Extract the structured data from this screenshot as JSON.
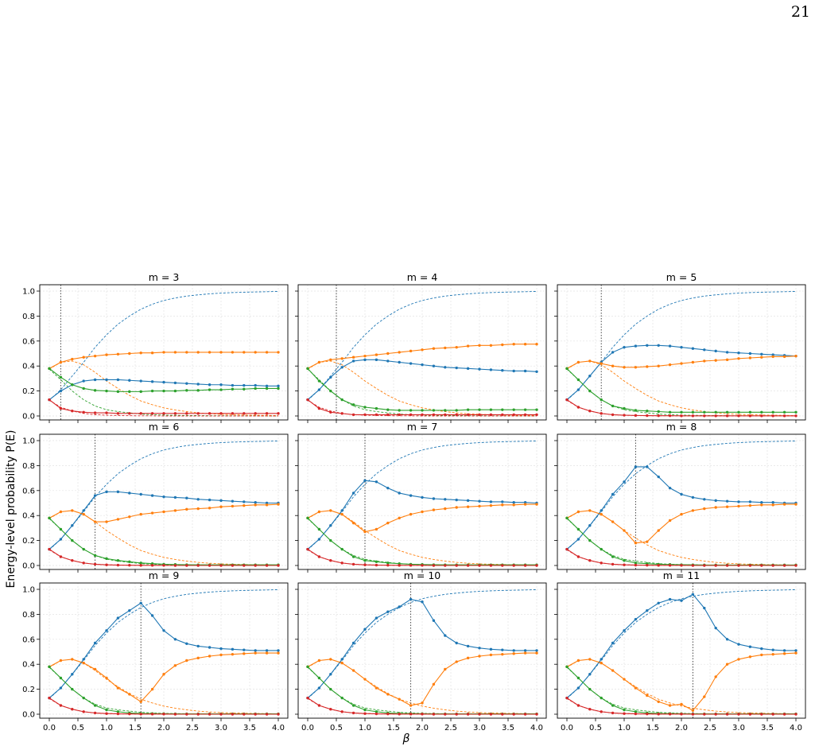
{
  "page_number": "21",
  "chart_data": {
    "type": "line",
    "layout": "3x3 grid",
    "xlabel": "β",
    "ylabel": "Energy-level probability P(E)",
    "xlim": [
      0.0,
      4.0
    ],
    "ylim": [
      0.0,
      1.0
    ],
    "xticks": [
      "0.0",
      "0.5",
      "1.0",
      "1.5",
      "2.0",
      "2.5",
      "3.0",
      "3.5",
      "4.0"
    ],
    "yticks": [
      "0.0",
      "0.2",
      "0.4",
      "0.6",
      "0.8",
      "1.0"
    ],
    "grid": true,
    "colors": {
      "blue": "#1f77b4",
      "orange": "#ff7f0e",
      "green": "#2ca02c",
      "red": "#d62728"
    },
    "exact_series": {
      "x": [
        0.0,
        0.2,
        0.4,
        0.6,
        0.8,
        1.0,
        1.2,
        1.4,
        1.6,
        1.8,
        2.0,
        2.2,
        2.4,
        2.6,
        2.8,
        3.0,
        3.2,
        3.4,
        3.6,
        3.8,
        4.0
      ],
      "blue": [
        0.125,
        0.21,
        0.32,
        0.43,
        0.55,
        0.65,
        0.735,
        0.8,
        0.855,
        0.895,
        0.925,
        0.945,
        0.96,
        0.97,
        0.978,
        0.984,
        0.988,
        0.991,
        0.993,
        0.995,
        0.997
      ],
      "orange": [
        0.375,
        0.43,
        0.44,
        0.41,
        0.35,
        0.28,
        0.22,
        0.165,
        0.12,
        0.09,
        0.065,
        0.048,
        0.035,
        0.025,
        0.018,
        0.013,
        0.01,
        0.008,
        0.006,
        0.005,
        0.003
      ],
      "green": [
        0.375,
        0.29,
        0.2,
        0.13,
        0.08,
        0.05,
        0.035,
        0.025,
        0.015,
        0.01,
        0.007,
        0.005,
        0.004,
        0.003,
        0.002,
        0.002,
        0.001,
        0.001,
        0.001,
        0.0,
        0.0
      ],
      "red": [
        0.125,
        0.07,
        0.04,
        0.02,
        0.01,
        0.006,
        0.004,
        0.002,
        0.001,
        0.001,
        0.0,
        0.0,
        0.0,
        0.0,
        0.0,
        0.0,
        0.0,
        0.0,
        0.0,
        0.0,
        0.0
      ]
    },
    "panels": [
      {
        "title": "m = 3",
        "vline": 0.2,
        "x": [
          0.0,
          0.2,
          0.4,
          0.6,
          0.8,
          1.0,
          1.2,
          1.4,
          1.6,
          1.8,
          2.0,
          2.2,
          2.4,
          2.6,
          2.8,
          3.0,
          3.2,
          3.4,
          3.6,
          3.8,
          4.0
        ],
        "blue": [
          0.13,
          0.2,
          0.25,
          0.28,
          0.29,
          0.29,
          0.29,
          0.285,
          0.28,
          0.275,
          0.27,
          0.265,
          0.26,
          0.255,
          0.25,
          0.25,
          0.245,
          0.245,
          0.245,
          0.24,
          0.24
        ],
        "orange": [
          0.38,
          0.43,
          0.455,
          0.47,
          0.48,
          0.49,
          0.495,
          0.5,
          0.505,
          0.505,
          0.51,
          0.51,
          0.51,
          0.51,
          0.51,
          0.51,
          0.51,
          0.51,
          0.51,
          0.51,
          0.51
        ],
        "green": [
          0.38,
          0.31,
          0.25,
          0.22,
          0.205,
          0.2,
          0.195,
          0.195,
          0.195,
          0.2,
          0.2,
          0.2,
          0.205,
          0.205,
          0.21,
          0.21,
          0.215,
          0.215,
          0.22,
          0.22,
          0.22
        ],
        "red": [
          0.13,
          0.06,
          0.04,
          0.03,
          0.025,
          0.025,
          0.02,
          0.02,
          0.02,
          0.02,
          0.02,
          0.02,
          0.02,
          0.02,
          0.02,
          0.02,
          0.02,
          0.02,
          0.02,
          0.02,
          0.02
        ]
      },
      {
        "title": "m = 4",
        "vline": 0.5,
        "x": [
          0.0,
          0.2,
          0.4,
          0.6,
          0.8,
          1.0,
          1.2,
          1.4,
          1.6,
          1.8,
          2.0,
          2.2,
          2.4,
          2.6,
          2.8,
          3.0,
          3.2,
          3.4,
          3.6,
          3.8,
          4.0
        ],
        "blue": [
          0.13,
          0.21,
          0.31,
          0.39,
          0.44,
          0.45,
          0.45,
          0.44,
          0.43,
          0.42,
          0.41,
          0.4,
          0.39,
          0.385,
          0.38,
          0.375,
          0.37,
          0.365,
          0.36,
          0.36,
          0.355
        ],
        "orange": [
          0.38,
          0.43,
          0.45,
          0.46,
          0.47,
          0.48,
          0.49,
          0.5,
          0.51,
          0.52,
          0.53,
          0.54,
          0.545,
          0.55,
          0.56,
          0.565,
          0.565,
          0.57,
          0.575,
          0.575,
          0.575
        ],
        "green": [
          0.38,
          0.28,
          0.2,
          0.13,
          0.09,
          0.07,
          0.06,
          0.05,
          0.045,
          0.045,
          0.045,
          0.045,
          0.045,
          0.045,
          0.05,
          0.05,
          0.05,
          0.05,
          0.05,
          0.05,
          0.05
        ],
        "red": [
          0.13,
          0.06,
          0.03,
          0.02,
          0.01,
          0.01,
          0.01,
          0.01,
          0.01,
          0.01,
          0.01,
          0.01,
          0.01,
          0.01,
          0.01,
          0.01,
          0.01,
          0.01,
          0.01,
          0.01,
          0.01
        ]
      },
      {
        "title": "m = 5",
        "vline": 0.6,
        "x": [
          0.0,
          0.2,
          0.4,
          0.6,
          0.8,
          1.0,
          1.2,
          1.4,
          1.6,
          1.8,
          2.0,
          2.2,
          2.4,
          2.6,
          2.8,
          3.0,
          3.2,
          3.4,
          3.6,
          3.8,
          4.0
        ],
        "blue": [
          0.13,
          0.21,
          0.32,
          0.43,
          0.51,
          0.55,
          0.56,
          0.565,
          0.565,
          0.56,
          0.55,
          0.54,
          0.53,
          0.52,
          0.51,
          0.505,
          0.5,
          0.495,
          0.49,
          0.485,
          0.48
        ],
        "orange": [
          0.38,
          0.43,
          0.44,
          0.42,
          0.4,
          0.39,
          0.39,
          0.395,
          0.4,
          0.41,
          0.42,
          0.43,
          0.44,
          0.445,
          0.45,
          0.46,
          0.465,
          0.47,
          0.475,
          0.475,
          0.48
        ],
        "green": [
          0.38,
          0.29,
          0.2,
          0.13,
          0.08,
          0.06,
          0.045,
          0.04,
          0.035,
          0.03,
          0.03,
          0.03,
          0.03,
          0.03,
          0.03,
          0.03,
          0.03,
          0.03,
          0.03,
          0.03,
          0.03
        ],
        "red": [
          0.13,
          0.07,
          0.04,
          0.02,
          0.01,
          0.006,
          0.004,
          0.003,
          0.002,
          0.002,
          0.001,
          0.001,
          0.001,
          0.001,
          0.001,
          0.001,
          0.001,
          0.001,
          0.001,
          0.001,
          0.001
        ]
      },
      {
        "title": "m = 6",
        "vline": 0.8,
        "x": [
          0.0,
          0.2,
          0.4,
          0.6,
          0.8,
          1.0,
          1.2,
          1.4,
          1.6,
          1.8,
          2.0,
          2.2,
          2.4,
          2.6,
          2.8,
          3.0,
          3.2,
          3.4,
          3.6,
          3.8,
          4.0
        ],
        "blue": [
          0.13,
          0.21,
          0.32,
          0.44,
          0.56,
          0.59,
          0.59,
          0.58,
          0.57,
          0.56,
          0.55,
          0.545,
          0.54,
          0.53,
          0.525,
          0.52,
          0.515,
          0.51,
          0.505,
          0.5,
          0.5
        ],
        "orange": [
          0.38,
          0.43,
          0.44,
          0.41,
          0.35,
          0.35,
          0.37,
          0.39,
          0.41,
          0.42,
          0.43,
          0.44,
          0.45,
          0.455,
          0.46,
          0.47,
          0.475,
          0.48,
          0.485,
          0.485,
          0.49
        ],
        "green": [
          0.38,
          0.29,
          0.2,
          0.13,
          0.08,
          0.055,
          0.04,
          0.03,
          0.02,
          0.015,
          0.01,
          0.008,
          0.006,
          0.005,
          0.005,
          0.005,
          0.005,
          0.005,
          0.005,
          0.005,
          0.005
        ],
        "red": [
          0.13,
          0.07,
          0.04,
          0.02,
          0.01,
          0.005,
          0.003,
          0.002,
          0.001,
          0.001,
          0.001,
          0.0,
          0.0,
          0.0,
          0.0,
          0.0,
          0.0,
          0.0,
          0.0,
          0.0,
          0.0
        ]
      },
      {
        "title": "m = 7",
        "vline": 1.0,
        "x": [
          0.0,
          0.2,
          0.4,
          0.6,
          0.8,
          1.0,
          1.2,
          1.4,
          1.6,
          1.8,
          2.0,
          2.2,
          2.4,
          2.6,
          2.8,
          3.0,
          3.2,
          3.4,
          3.6,
          3.8,
          4.0
        ],
        "blue": [
          0.13,
          0.21,
          0.32,
          0.44,
          0.58,
          0.68,
          0.67,
          0.62,
          0.58,
          0.56,
          0.545,
          0.535,
          0.53,
          0.525,
          0.52,
          0.515,
          0.51,
          0.51,
          0.505,
          0.505,
          0.5
        ],
        "orange": [
          0.38,
          0.43,
          0.44,
          0.41,
          0.34,
          0.27,
          0.29,
          0.34,
          0.38,
          0.41,
          0.43,
          0.445,
          0.455,
          0.465,
          0.47,
          0.475,
          0.48,
          0.485,
          0.485,
          0.49,
          0.49
        ],
        "green": [
          0.38,
          0.29,
          0.2,
          0.13,
          0.07,
          0.04,
          0.03,
          0.02,
          0.015,
          0.01,
          0.008,
          0.006,
          0.005,
          0.005,
          0.005,
          0.005,
          0.005,
          0.005,
          0.005,
          0.005,
          0.005
        ],
        "red": [
          0.13,
          0.07,
          0.04,
          0.02,
          0.01,
          0.005,
          0.003,
          0.002,
          0.001,
          0.001,
          0.001,
          0.0,
          0.0,
          0.0,
          0.0,
          0.0,
          0.0,
          0.0,
          0.0,
          0.0,
          0.0
        ]
      },
      {
        "title": "m = 8",
        "vline": 1.2,
        "x": [
          0.0,
          0.2,
          0.4,
          0.6,
          0.8,
          1.0,
          1.2,
          1.4,
          1.6,
          1.8,
          2.0,
          2.2,
          2.4,
          2.6,
          2.8,
          3.0,
          3.2,
          3.4,
          3.6,
          3.8,
          4.0
        ],
        "blue": [
          0.13,
          0.21,
          0.32,
          0.44,
          0.57,
          0.67,
          0.79,
          0.79,
          0.71,
          0.62,
          0.57,
          0.545,
          0.53,
          0.52,
          0.515,
          0.51,
          0.51,
          0.505,
          0.505,
          0.5,
          0.5
        ],
        "orange": [
          0.38,
          0.43,
          0.44,
          0.41,
          0.35,
          0.28,
          0.18,
          0.19,
          0.28,
          0.36,
          0.41,
          0.44,
          0.455,
          0.465,
          0.47,
          0.475,
          0.48,
          0.485,
          0.485,
          0.49,
          0.49
        ],
        "green": [
          0.38,
          0.29,
          0.2,
          0.13,
          0.07,
          0.04,
          0.02,
          0.015,
          0.01,
          0.008,
          0.006,
          0.005,
          0.004,
          0.004,
          0.004,
          0.004,
          0.004,
          0.004,
          0.004,
          0.004,
          0.004
        ],
        "red": [
          0.13,
          0.07,
          0.04,
          0.02,
          0.01,
          0.005,
          0.003,
          0.002,
          0.001,
          0.001,
          0.001,
          0.0,
          0.0,
          0.0,
          0.0,
          0.0,
          0.0,
          0.0,
          0.0,
          0.0,
          0.0
        ]
      },
      {
        "title": "m = 9",
        "vline": 1.6,
        "x": [
          0.0,
          0.2,
          0.4,
          0.6,
          0.8,
          1.0,
          1.2,
          1.4,
          1.6,
          1.8,
          2.0,
          2.2,
          2.4,
          2.6,
          2.8,
          3.0,
          3.2,
          3.4,
          3.6,
          3.8,
          4.0
        ],
        "blue": [
          0.13,
          0.21,
          0.32,
          0.44,
          0.57,
          0.67,
          0.77,
          0.83,
          0.89,
          0.79,
          0.67,
          0.6,
          0.565,
          0.545,
          0.535,
          0.525,
          0.52,
          0.515,
          0.51,
          0.51,
          0.51
        ],
        "orange": [
          0.38,
          0.43,
          0.44,
          0.41,
          0.36,
          0.29,
          0.21,
          0.16,
          0.1,
          0.2,
          0.32,
          0.39,
          0.43,
          0.45,
          0.465,
          0.475,
          0.48,
          0.485,
          0.49,
          0.49,
          0.49
        ],
        "green": [
          0.38,
          0.29,
          0.2,
          0.13,
          0.07,
          0.035,
          0.02,
          0.01,
          0.006,
          0.005,
          0.004,
          0.003,
          0.003,
          0.003,
          0.003,
          0.003,
          0.003,
          0.003,
          0.003,
          0.003,
          0.003
        ],
        "red": [
          0.13,
          0.07,
          0.04,
          0.02,
          0.01,
          0.005,
          0.003,
          0.002,
          0.001,
          0.001,
          0.001,
          0.0,
          0.0,
          0.0,
          0.0,
          0.0,
          0.0,
          0.0,
          0.0,
          0.0,
          0.0
        ]
      },
      {
        "title": "m = 10",
        "vline": 1.8,
        "x": [
          0.0,
          0.2,
          0.4,
          0.6,
          0.8,
          1.0,
          1.2,
          1.4,
          1.6,
          1.8,
          2.0,
          2.2,
          2.4,
          2.6,
          2.8,
          3.0,
          3.2,
          3.4,
          3.6,
          3.8,
          4.0
        ],
        "blue": [
          0.13,
          0.21,
          0.32,
          0.44,
          0.57,
          0.68,
          0.77,
          0.82,
          0.86,
          0.92,
          0.9,
          0.75,
          0.63,
          0.57,
          0.545,
          0.53,
          0.52,
          0.515,
          0.51,
          0.51,
          0.51
        ],
        "orange": [
          0.38,
          0.43,
          0.44,
          0.41,
          0.35,
          0.28,
          0.21,
          0.16,
          0.12,
          0.07,
          0.09,
          0.24,
          0.36,
          0.42,
          0.45,
          0.465,
          0.475,
          0.48,
          0.485,
          0.49,
          0.49
        ],
        "green": [
          0.38,
          0.29,
          0.2,
          0.13,
          0.07,
          0.035,
          0.02,
          0.01,
          0.006,
          0.005,
          0.004,
          0.003,
          0.003,
          0.003,
          0.003,
          0.003,
          0.003,
          0.003,
          0.003,
          0.003,
          0.003
        ],
        "red": [
          0.13,
          0.07,
          0.04,
          0.02,
          0.01,
          0.005,
          0.003,
          0.002,
          0.001,
          0.001,
          0.001,
          0.0,
          0.0,
          0.0,
          0.0,
          0.0,
          0.0,
          0.0,
          0.0,
          0.0,
          0.0
        ]
      },
      {
        "title": "m = 11",
        "vline": 2.2,
        "x": [
          0.0,
          0.2,
          0.4,
          0.6,
          0.8,
          1.0,
          1.2,
          1.4,
          1.6,
          1.8,
          2.0,
          2.2,
          2.4,
          2.6,
          2.8,
          3.0,
          3.2,
          3.4,
          3.6,
          3.8,
          4.0
        ],
        "blue": [
          0.13,
          0.21,
          0.32,
          0.44,
          0.57,
          0.67,
          0.76,
          0.83,
          0.89,
          0.92,
          0.91,
          0.96,
          0.85,
          0.69,
          0.6,
          0.56,
          0.54,
          0.525,
          0.515,
          0.51,
          0.51
        ],
        "orange": [
          0.38,
          0.43,
          0.44,
          0.41,
          0.35,
          0.28,
          0.21,
          0.15,
          0.1,
          0.07,
          0.08,
          0.03,
          0.14,
          0.3,
          0.4,
          0.44,
          0.46,
          0.475,
          0.48,
          0.485,
          0.49
        ],
        "green": [
          0.38,
          0.29,
          0.2,
          0.13,
          0.07,
          0.035,
          0.02,
          0.01,
          0.006,
          0.005,
          0.004,
          0.003,
          0.003,
          0.003,
          0.003,
          0.003,
          0.003,
          0.003,
          0.003,
          0.003,
          0.003
        ],
        "red": [
          0.13,
          0.07,
          0.04,
          0.02,
          0.01,
          0.005,
          0.003,
          0.002,
          0.001,
          0.001,
          0.001,
          0.0,
          0.0,
          0.0,
          0.0,
          0.0,
          0.0,
          0.0,
          0.0,
          0.0,
          0.0
        ]
      }
    ]
  }
}
